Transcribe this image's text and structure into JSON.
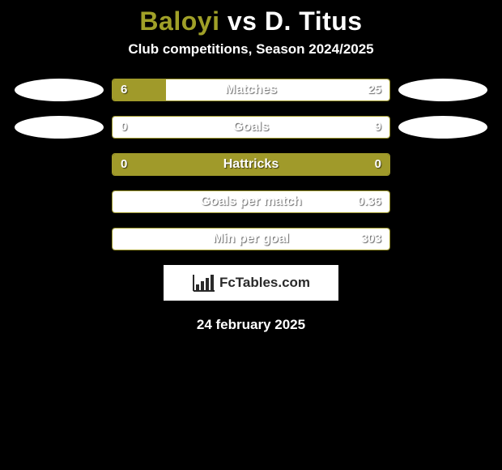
{
  "title": {
    "player1": "Baloyi",
    "vs": "vs",
    "player2": "D. Titus"
  },
  "subtitle": "Club competitions, Season 2024/2025",
  "colors": {
    "player1": "#a09a2a",
    "player2": "#ffffff",
    "bar_border": "#a09a2a",
    "background": "#000000",
    "text": "#ffffff"
  },
  "stats": [
    {
      "label": "Matches",
      "left_val": "6",
      "right_val": "25",
      "left_pct": 19.4,
      "right_pct": 80.6,
      "show_avatars": true
    },
    {
      "label": "Goals",
      "left_val": "0",
      "right_val": "9",
      "left_pct": 0,
      "right_pct": 100,
      "show_avatars": true
    },
    {
      "label": "Hattricks",
      "left_val": "0",
      "right_val": "0",
      "left_pct": 100,
      "right_pct": 0,
      "show_avatars": false
    },
    {
      "label": "Goals per match",
      "left_val": "",
      "right_val": "0.36",
      "left_pct": 0,
      "right_pct": 100,
      "show_avatars": false
    },
    {
      "label": "Min per goal",
      "left_val": "",
      "right_val": "303",
      "left_pct": 0,
      "right_pct": 100,
      "show_avatars": false
    }
  ],
  "logo_text": "FcTables.com",
  "date": "24 february 2025"
}
